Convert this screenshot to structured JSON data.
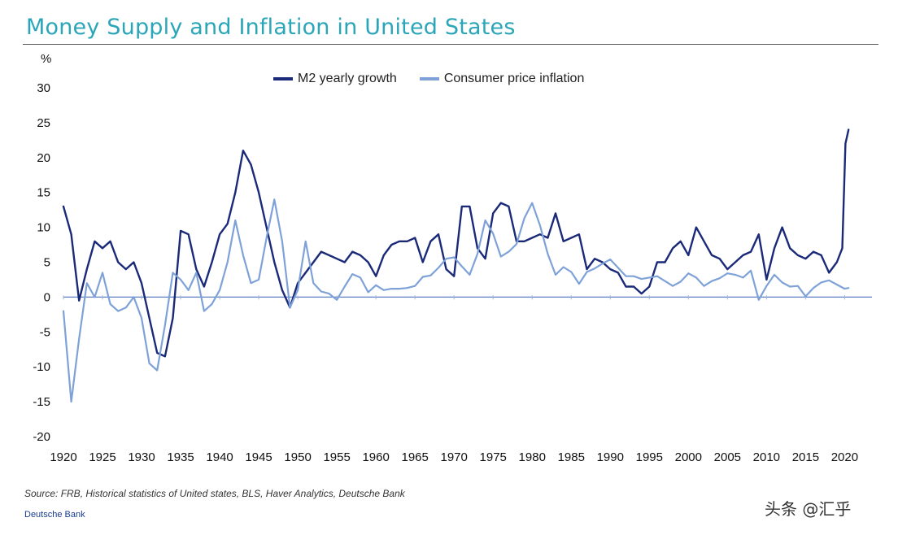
{
  "title": "Money Supply and Inflation in United States",
  "unit_label": "%",
  "source": "Source: FRB, Historical statistics of United states, BLS, Haver Analytics, Deutsche Bank",
  "brand": "Deutsche Bank",
  "watermark": "头条 @汇乎",
  "chart_data": {
    "type": "line",
    "title": "Money Supply and Inflation in United States",
    "xlabel": "",
    "ylabel": "%",
    "xlim": [
      1920,
      2021
    ],
    "ylim": [
      -20,
      30
    ],
    "x_ticks": [
      "1920",
      "1925",
      "1930",
      "1935",
      "1940",
      "1945",
      "1950",
      "1955",
      "1960",
      "1965",
      "1970",
      "1975",
      "1980",
      "1985",
      "1990",
      "1995",
      "2000",
      "2005",
      "2010",
      "2015",
      "2020"
    ],
    "y_ticks": [
      "30",
      "25",
      "20",
      "15",
      "10",
      "5",
      "0",
      "-5",
      "-10",
      "-15",
      "-20"
    ],
    "legend_position": "top-center",
    "grid": false,
    "series": [
      {
        "name": "M2 yearly growth",
        "color": "#1a2a78",
        "points": [
          [
            1920,
            13
          ],
          [
            1921,
            9
          ],
          [
            1922,
            -0.5
          ],
          [
            1923,
            4
          ],
          [
            1924,
            8
          ],
          [
            1925,
            7
          ],
          [
            1926,
            8
          ],
          [
            1927,
            5
          ],
          [
            1928,
            4
          ],
          [
            1929,
            5
          ],
          [
            1930,
            2
          ],
          [
            1931,
            -3
          ],
          [
            1932,
            -8
          ],
          [
            1933,
            -8.5
          ],
          [
            1934,
            -3
          ],
          [
            1935,
            9.5
          ],
          [
            1936,
            9
          ],
          [
            1937,
            4
          ],
          [
            1938,
            1.5
          ],
          [
            1939,
            5
          ],
          [
            1940,
            9
          ],
          [
            1941,
            10.5
          ],
          [
            1942,
            15
          ],
          [
            1943,
            21
          ],
          [
            1944,
            19
          ],
          [
            1945,
            15
          ],
          [
            1946,
            10
          ],
          [
            1947,
            5
          ],
          [
            1948,
            1
          ],
          [
            1949,
            -1.5
          ],
          [
            1950,
            2
          ],
          [
            1951,
            3.5
          ],
          [
            1952,
            5
          ],
          [
            1953,
            6.5
          ],
          [
            1954,
            6
          ],
          [
            1955,
            5.5
          ],
          [
            1956,
            5
          ],
          [
            1957,
            6.5
          ],
          [
            1958,
            6
          ],
          [
            1959,
            5
          ],
          [
            1960,
            3
          ],
          [
            1961,
            6
          ],
          [
            1962,
            7.5
          ],
          [
            1963,
            8
          ],
          [
            1964,
            8
          ],
          [
            1965,
            8.5
          ],
          [
            1966,
            5
          ],
          [
            1967,
            8
          ],
          [
            1968,
            9
          ],
          [
            1969,
            4
          ],
          [
            1970,
            3
          ],
          [
            1971,
            13
          ],
          [
            1972,
            13
          ],
          [
            1973,
            7
          ],
          [
            1974,
            5.5
          ],
          [
            1975,
            12
          ],
          [
            1976,
            13.5
          ],
          [
            1977,
            13
          ],
          [
            1978,
            8
          ],
          [
            1979,
            8
          ],
          [
            1980,
            8.5
          ],
          [
            1981,
            9
          ],
          [
            1982,
            8.5
          ],
          [
            1983,
            12
          ],
          [
            1984,
            8
          ],
          [
            1985,
            8.5
          ],
          [
            1986,
            9
          ],
          [
            1987,
            4
          ],
          [
            1988,
            5.5
          ],
          [
            1989,
            5
          ],
          [
            1990,
            4
          ],
          [
            1991,
            3.5
          ],
          [
            1992,
            1.5
          ],
          [
            1993,
            1.5
          ],
          [
            1994,
            0.5
          ],
          [
            1995,
            1.5
          ],
          [
            1996,
            5
          ],
          [
            1997,
            5
          ],
          [
            1998,
            7
          ],
          [
            1999,
            8
          ],
          [
            2000,
            6
          ],
          [
            2001,
            10
          ],
          [
            2002,
            8
          ],
          [
            2003,
            6
          ],
          [
            2004,
            5.5
          ],
          [
            2005,
            4
          ],
          [
            2006,
            5
          ],
          [
            2007,
            6
          ],
          [
            2008,
            6.5
          ],
          [
            2009,
            9
          ],
          [
            2010,
            2.5
          ],
          [
            2011,
            7
          ],
          [
            2012,
            10
          ],
          [
            2013,
            7
          ],
          [
            2014,
            6
          ],
          [
            2015,
            5.5
          ],
          [
            2016,
            6.5
          ],
          [
            2017,
            6
          ],
          [
            2018,
            3.5
          ],
          [
            2019,
            5
          ],
          [
            2019.7,
            7
          ],
          [
            2020.1,
            22
          ],
          [
            2020.5,
            24
          ]
        ]
      },
      {
        "name": "Consumer price inflation",
        "color": "#7ea2d8",
        "points": [
          [
            1920,
            -2
          ],
          [
            1921,
            -15
          ],
          [
            1922,
            -6
          ],
          [
            1923,
            2
          ],
          [
            1924,
            0
          ],
          [
            1925,
            3.5
          ],
          [
            1926,
            -1
          ],
          [
            1927,
            -2
          ],
          [
            1928,
            -1.5
          ],
          [
            1929,
            0
          ],
          [
            1930,
            -3
          ],
          [
            1931,
            -9.5
          ],
          [
            1932,
            -10.5
          ],
          [
            1933,
            -4
          ],
          [
            1934,
            3.5
          ],
          [
            1935,
            2.5
          ],
          [
            1936,
            1
          ],
          [
            1937,
            3.5
          ],
          [
            1938,
            -2
          ],
          [
            1939,
            -1
          ],
          [
            1940,
            1
          ],
          [
            1941,
            5
          ],
          [
            1942,
            11
          ],
          [
            1943,
            6
          ],
          [
            1944,
            2
          ],
          [
            1945,
            2.5
          ],
          [
            1946,
            8.5
          ],
          [
            1947,
            14
          ],
          [
            1948,
            8
          ],
          [
            1949,
            -1.5
          ],
          [
            1950,
            1
          ],
          [
            1951,
            8
          ],
          [
            1952,
            2
          ],
          [
            1953,
            0.8
          ],
          [
            1954,
            0.5
          ],
          [
            1955,
            -0.4
          ],
          [
            1956,
            1.5
          ],
          [
            1957,
            3.3
          ],
          [
            1958,
            2.8
          ],
          [
            1959,
            0.7
          ],
          [
            1960,
            1.7
          ],
          [
            1961,
            1
          ],
          [
            1962,
            1.2
          ],
          [
            1963,
            1.2
          ],
          [
            1964,
            1.3
          ],
          [
            1965,
            1.6
          ],
          [
            1966,
            2.9
          ],
          [
            1967,
            3.1
          ],
          [
            1968,
            4.2
          ],
          [
            1969,
            5.5
          ],
          [
            1970,
            5.7
          ],
          [
            1971,
            4.4
          ],
          [
            1972,
            3.2
          ],
          [
            1973,
            6.2
          ],
          [
            1974,
            11
          ],
          [
            1975,
            9.1
          ],
          [
            1976,
            5.8
          ],
          [
            1977,
            6.5
          ],
          [
            1978,
            7.6
          ],
          [
            1979,
            11.3
          ],
          [
            1980,
            13.5
          ],
          [
            1981,
            10.3
          ],
          [
            1982,
            6.2
          ],
          [
            1983,
            3.2
          ],
          [
            1984,
            4.3
          ],
          [
            1985,
            3.6
          ],
          [
            1986,
            1.9
          ],
          [
            1987,
            3.6
          ],
          [
            1988,
            4.1
          ],
          [
            1989,
            4.8
          ],
          [
            1990,
            5.4
          ],
          [
            1991,
            4.2
          ],
          [
            1992,
            3
          ],
          [
            1993,
            3
          ],
          [
            1994,
            2.6
          ],
          [
            1995,
            2.8
          ],
          [
            1996,
            3
          ],
          [
            1997,
            2.3
          ],
          [
            1998,
            1.6
          ],
          [
            1999,
            2.2
          ],
          [
            2000,
            3.4
          ],
          [
            2001,
            2.8
          ],
          [
            2002,
            1.6
          ],
          [
            2003,
            2.3
          ],
          [
            2004,
            2.7
          ],
          [
            2005,
            3.4
          ],
          [
            2006,
            3.2
          ],
          [
            2007,
            2.8
          ],
          [
            2008,
            3.8
          ],
          [
            2009,
            -0.4
          ],
          [
            2010,
            1.6
          ],
          [
            2011,
            3.2
          ],
          [
            2012,
            2.1
          ],
          [
            2013,
            1.5
          ],
          [
            2014,
            1.6
          ],
          [
            2015,
            0.1
          ],
          [
            2016,
            1.3
          ],
          [
            2017,
            2.1
          ],
          [
            2018,
            2.4
          ],
          [
            2019,
            1.8
          ],
          [
            2020,
            1.2
          ],
          [
            2020.5,
            1.3
          ]
        ]
      }
    ]
  }
}
